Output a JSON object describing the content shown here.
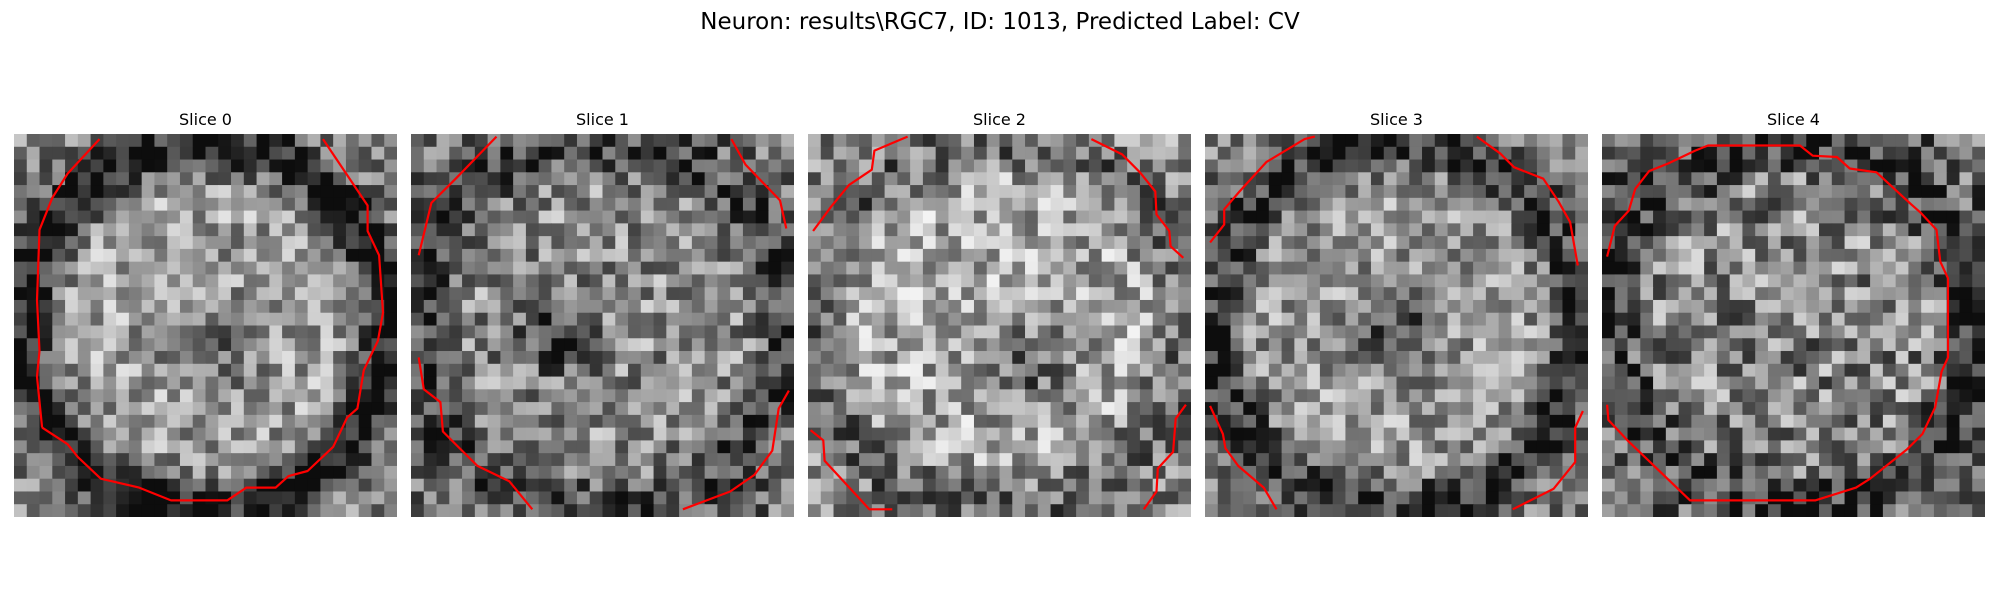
{
  "figure": {
    "title": "Neuron: results\\RGC7, ID: 1013, Predicted Label: CV"
  },
  "panels": [
    {
      "title": "Slice 0"
    },
    {
      "title": "Slice 1"
    },
    {
      "title": "Slice 2"
    },
    {
      "title": "Slice 3"
    },
    {
      "title": "Slice 4"
    }
  ],
  "colors": {
    "contour": "#ff0000",
    "background": "#ffffff"
  }
}
